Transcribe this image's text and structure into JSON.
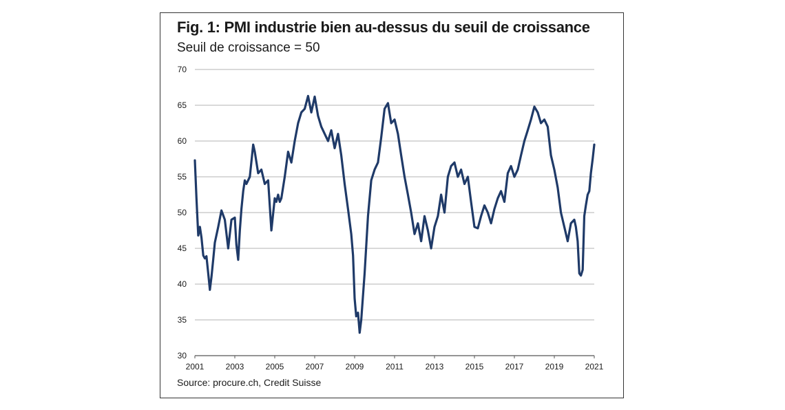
{
  "chart_data": {
    "type": "line",
    "title": "Fig. 1: PMI industrie bien au-dessus du seuil de croissance",
    "subtitle": "Seuil de croissance = 50",
    "source": "Source: procure.ch, Credit Suisse",
    "xlabel": "",
    "ylabel": "",
    "xlim": [
      2001,
      2021
    ],
    "ylim": [
      30,
      70
    ],
    "x_ticks": [
      "2001",
      "2003",
      "2005",
      "2007",
      "2009",
      "2011",
      "2013",
      "2015",
      "2017",
      "2019",
      "2021"
    ],
    "y_ticks": [
      "70",
      "65",
      "60",
      "55",
      "50",
      "45",
      "40",
      "35",
      "30"
    ],
    "grid": "horizontal",
    "legend": "none",
    "series_color": "#1f3a68",
    "series": [
      {
        "x": [
          2001.0,
          2001.08,
          2001.17,
          2001.25,
          2001.33,
          2001.42,
          2001.5,
          2001.58,
          2001.67,
          2001.75,
          2001.83,
          2001.92,
          2002.0,
          2002.17,
          2002.33,
          2002.5,
          2002.67,
          2002.83,
          2003.0,
          2003.08,
          2003.17,
          2003.25,
          2003.33,
          2003.42,
          2003.5,
          2003.58,
          2003.75,
          2003.92,
          2004.0,
          2004.17,
          2004.33,
          2004.5,
          2004.67,
          2004.83,
          2005.0,
          2005.08,
          2005.17,
          2005.25,
          2005.33,
          2005.5,
          2005.67,
          2005.83,
          2006.0,
          2006.17,
          2006.33,
          2006.5,
          2006.67,
          2006.83,
          2007.0,
          2007.17,
          2007.33,
          2007.5,
          2007.67,
          2007.83,
          2008.0,
          2008.17,
          2008.33,
          2008.5,
          2008.67,
          2008.83,
          2008.92,
          2009.0,
          2009.08,
          2009.17,
          2009.25,
          2009.33,
          2009.5,
          2009.67,
          2009.83,
          2010.0,
          2010.17,
          2010.33,
          2010.5,
          2010.67,
          2010.83,
          2011.0,
          2011.17,
          2011.33,
          2011.5,
          2011.67,
          2011.83,
          2012.0,
          2012.17,
          2012.33,
          2012.5,
          2012.67,
          2012.83,
          2013.0,
          2013.17,
          2013.33,
          2013.5,
          2013.67,
          2013.83,
          2014.0,
          2014.17,
          2014.33,
          2014.5,
          2014.67,
          2014.83,
          2015.0,
          2015.17,
          2015.33,
          2015.5,
          2015.67,
          2015.83,
          2016.0,
          2016.17,
          2016.33,
          2016.5,
          2016.67,
          2016.83,
          2017.0,
          2017.17,
          2017.33,
          2017.5,
          2017.67,
          2017.83,
          2018.0,
          2018.17,
          2018.33,
          2018.5,
          2018.67,
          2018.83,
          2019.0,
          2019.17,
          2019.33,
          2019.5,
          2019.67,
          2019.83,
          2020.0,
          2020.08,
          2020.17,
          2020.25,
          2020.33,
          2020.42,
          2020.5,
          2020.58,
          2020.67,
          2020.75,
          2020.83,
          2020.92,
          2021.0
        ],
        "y": [
          57.3,
          52.0,
          46.8,
          48.0,
          46.5,
          44.0,
          43.6,
          43.9,
          41.5,
          39.2,
          41.0,
          43.5,
          45.8,
          48.0,
          50.3,
          49.0,
          45.0,
          49.0,
          49.3,
          45.5,
          43.4,
          47.5,
          50.5,
          53.0,
          54.5,
          54.0,
          55.0,
          59.5,
          58.5,
          55.5,
          56.0,
          54.0,
          54.5,
          47.5,
          52.0,
          51.5,
          52.5,
          51.5,
          52.0,
          55.0,
          58.5,
          57.0,
          60.0,
          62.5,
          64.0,
          64.5,
          66.3,
          64.0,
          66.2,
          63.5,
          62.0,
          61.0,
          60.0,
          61.5,
          59.0,
          61.0,
          58.0,
          54.0,
          50.5,
          47.0,
          44.0,
          38.0,
          35.5,
          36.0,
          33.2,
          35.0,
          41.5,
          49.5,
          54.5,
          56.0,
          57.0,
          60.5,
          64.5,
          65.3,
          62.5,
          63.0,
          61.0,
          58.0,
          55.0,
          52.5,
          50.0,
          47.0,
          48.5,
          46.0,
          49.5,
          47.5,
          45.0,
          48.0,
          49.5,
          52.5,
          50.0,
          55.0,
          56.5,
          57.0,
          55.0,
          56.0,
          54.0,
          55.0,
          51.5,
          48.0,
          47.8,
          49.5,
          51.0,
          50.0,
          48.5,
          50.5,
          52.0,
          53.0,
          51.5,
          55.5,
          56.5,
          55.0,
          56.0,
          58.0,
          60.0,
          61.5,
          63.0,
          64.8,
          64.0,
          62.5,
          63.0,
          62.0,
          58.0,
          56.0,
          53.5,
          50.0,
          48.0,
          46.0,
          48.5,
          49.0,
          48.0,
          46.0,
          41.5,
          41.2,
          42.0,
          49.5,
          51.0,
          52.5,
          53.0,
          55.5,
          57.5,
          59.5
        ]
      }
    ]
  }
}
